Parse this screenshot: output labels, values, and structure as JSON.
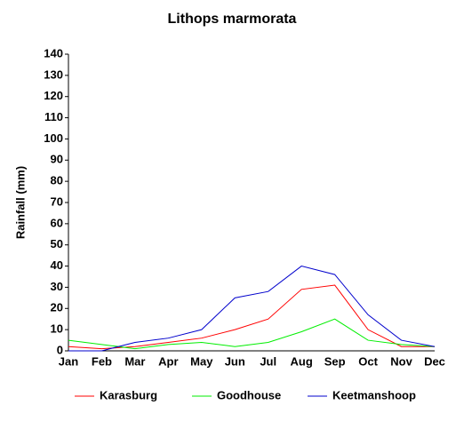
{
  "chart_data": {
    "type": "line",
    "title": "Lithops marmorata",
    "y_label": "Rainfall (mm)",
    "categories": [
      "Jan",
      "Feb",
      "Mar",
      "Apr",
      "May",
      "Jun",
      "Jul",
      "Aug",
      "Sep",
      "Oct",
      "Nov",
      "Dec"
    ],
    "series": [
      {
        "name": "Karasburg",
        "color": "#ff0000",
        "values": [
          2,
          1,
          2,
          4,
          6,
          10,
          15,
          29,
          31,
          10,
          2,
          2
        ]
      },
      {
        "name": "Goodhouse",
        "color": "#00ee00",
        "values": [
          5,
          3,
          1,
          3,
          4,
          2,
          4,
          9,
          15,
          5,
          3,
          2
        ]
      },
      {
        "name": "Keetmanshoop",
        "color": "#0000cc",
        "values": [
          0,
          0,
          4,
          6,
          10,
          25,
          28,
          40,
          36,
          17,
          5,
          2
        ]
      }
    ],
    "ylim": [
      0,
      140
    ],
    "yticks": [
      0,
      10,
      20,
      30,
      40,
      50,
      60,
      70,
      80,
      90,
      100,
      110,
      120,
      130,
      140
    ],
    "grid": false,
    "legend": "bottom"
  }
}
